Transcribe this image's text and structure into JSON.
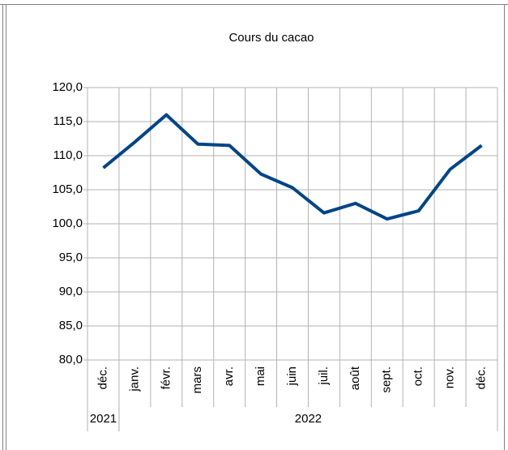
{
  "chart_data": {
    "type": "line",
    "title": "Cours du cacao",
    "categories": [
      "déc.",
      "janv.",
      "févr.",
      "mars",
      "avr.",
      "mai",
      "juin",
      "juil.",
      "août",
      "sept.",
      "oct.",
      "nov.",
      "déc."
    ],
    "category_groups": [
      {
        "label": "2021",
        "count": 1
      },
      {
        "label": "2022",
        "count": 12
      }
    ],
    "values": [
      108.2,
      112.0,
      116.0,
      111.7,
      111.5,
      107.3,
      105.3,
      101.6,
      103.0,
      100.7,
      101.9,
      108.0,
      111.5
    ],
    "color": "#004586",
    "ylim": [
      80,
      120
    ],
    "yticks": [
      {
        "value": 80,
        "label": "80,0"
      },
      {
        "value": 85,
        "label": "85,0"
      },
      {
        "value": 90,
        "label": "90,0"
      },
      {
        "value": 95,
        "label": "95,0"
      },
      {
        "value": 100,
        "label": "100,0"
      },
      {
        "value": 105,
        "label": "105,0"
      },
      {
        "value": 110,
        "label": "110,0"
      },
      {
        "value": 115,
        "label": "115,0"
      },
      {
        "value": 120,
        "label": "120,0"
      }
    ],
    "grid": true
  }
}
